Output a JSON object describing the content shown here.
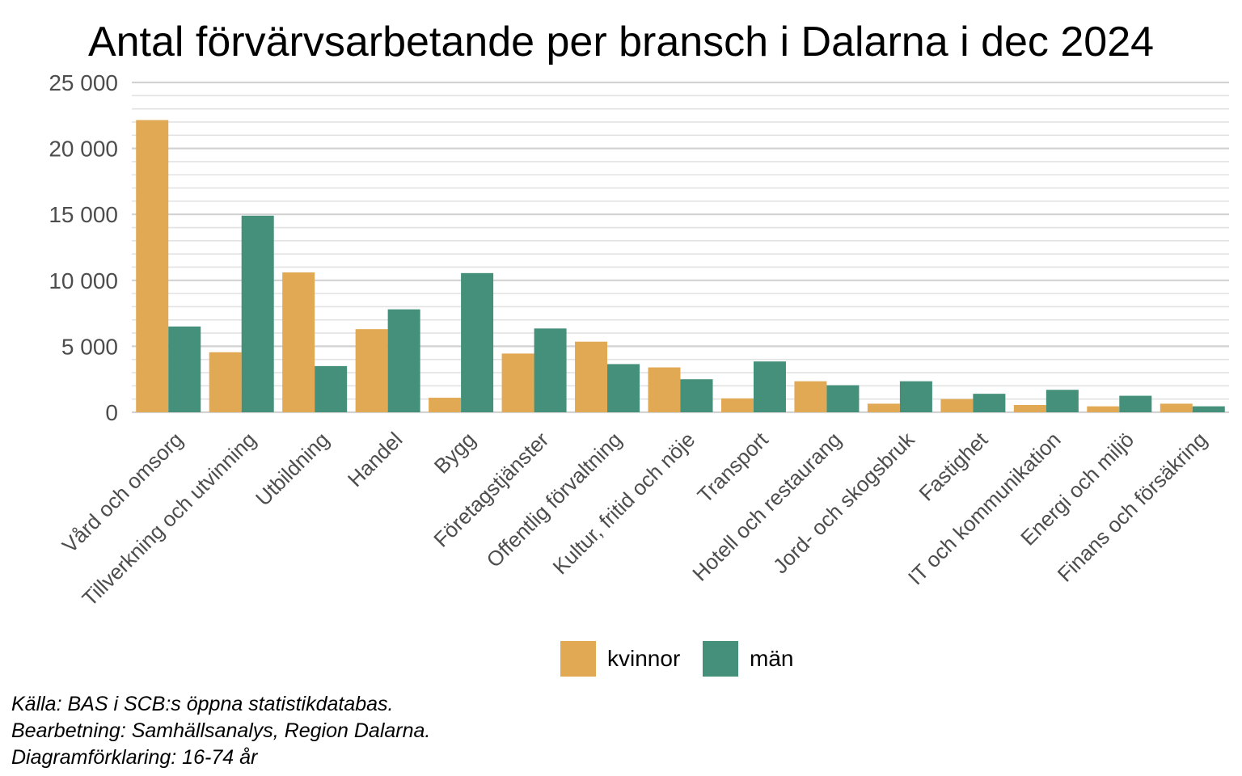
{
  "chart_data": {
    "type": "bar",
    "title": "Antal förvärvsarbetande per bransch i Dalarna i dec 2024",
    "xlabel": "",
    "ylabel": "",
    "ylim": [
      0,
      25000
    ],
    "y_ticks": [
      0,
      5000,
      10000,
      15000,
      20000,
      25000
    ],
    "y_tick_labels": [
      "0",
      "5 000",
      "10 000",
      "15 000",
      "20 000",
      "25 000"
    ],
    "grid": true,
    "legend_position": "bottom",
    "categories": [
      "Vård och omsorg",
      "Tillverkning och utvinning",
      "Utbildning",
      "Handel",
      "Bygg",
      "Företagstjänster",
      "Offentlig förvaltning",
      "Kultur, fritid och nöje",
      "Transport",
      "Hotell och restaurang",
      "Jord- och skogsbruk",
      "Fastighet",
      "IT och kommunikation",
      "Energi och miljö",
      "Finans och försäkring"
    ],
    "series": [
      {
        "name": "kvinnor",
        "color": "#E2A955",
        "values": [
          22150,
          4550,
          10600,
          6300,
          1100,
          4450,
          5350,
          3400,
          1050,
          2350,
          650,
          1000,
          550,
          450,
          650
        ]
      },
      {
        "name": "män",
        "color": "#44907B",
        "values": [
          6500,
          14900,
          3500,
          7800,
          10550,
          6350,
          3650,
          2500,
          3850,
          2050,
          2350,
          1400,
          1700,
          1250,
          450
        ]
      }
    ]
  },
  "captions": [
    "Källa: BAS i SCB:s öppna statistikdatabas.",
    "Bearbetning: Samhällsanalys, Region Dalarna.",
    "Diagramförklaring: 16-74 år"
  ]
}
